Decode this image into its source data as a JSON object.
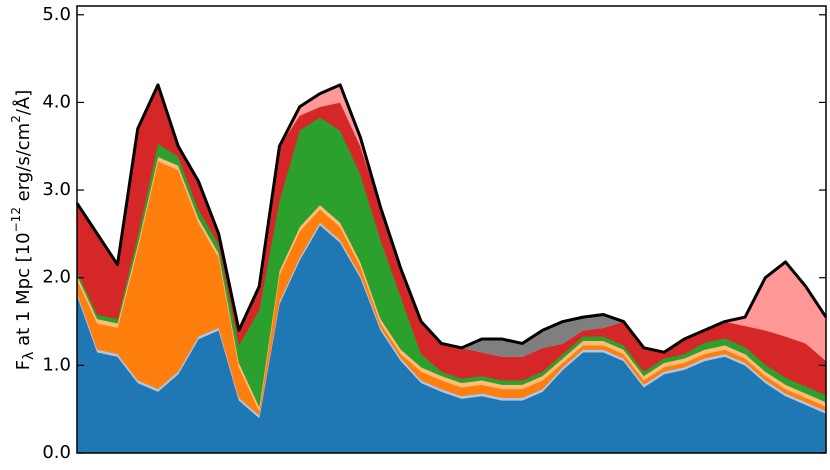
{
  "chart_data": {
    "type": "stacked_area",
    "ylabel": [
      "F",
      "λ",
      " at 1 Mpc [10",
      "−12",
      " erg/s/cm",
      "2",
      "/Å]"
    ],
    "categories": [
      null,
      null,
      null,
      null,
      null,
      null,
      null,
      null,
      null,
      null,
      null,
      null,
      null,
      null,
      null,
      null,
      null,
      null,
      null,
      null,
      null,
      null,
      null,
      null,
      null,
      null,
      null,
      null,
      null,
      null,
      null,
      null,
      null,
      null,
      null,
      null,
      null,
      null
    ],
    "ylim": [
      0,
      5.1
    ],
    "yticks": [
      {
        "value": 0,
        "label": "0.0"
      },
      {
        "value": 1,
        "label": "1.0"
      },
      {
        "value": 2,
        "label": "2.0"
      },
      {
        "value": 3,
        "label": "3.0"
      },
      {
        "value": 4,
        "label": "4.0"
      },
      {
        "value": 5,
        "label": "5.0"
      }
    ],
    "series": [
      {
        "color": "#1f77b4",
        "values": [
          1.8,
          1.15,
          1.1,
          0.8,
          0.7,
          0.9,
          1.3,
          1.4,
          0.6,
          0.4,
          1.7,
          2.2,
          2.6,
          2.4,
          2.0,
          1.4,
          1.05,
          0.8,
          0.7,
          0.62,
          0.65,
          0.6,
          0.6,
          0.7,
          0.95,
          1.15,
          1.15,
          1.05,
          0.75,
          0.9,
          0.95,
          1.05,
          1.1,
          1.0,
          0.8,
          0.65,
          0.55,
          0.45
        ]
      },
      {
        "color": "#aec7e8",
        "values": [
          0.03,
          0.03,
          0.03,
          0.03,
          0.03,
          0.03,
          0.03,
          0.03,
          0.03,
          0.03,
          0.03,
          0.03,
          0.03,
          0.03,
          0.03,
          0.03,
          0.03,
          0.03,
          0.03,
          0.03,
          0.03,
          0.03,
          0.03,
          0.03,
          0.03,
          0.03,
          0.03,
          0.03,
          0.03,
          0.03,
          0.03,
          0.03,
          0.03,
          0.03,
          0.03,
          0.03,
          0.03,
          0.03
        ]
      },
      {
        "color": "#ff7f0e",
        "values": [
          0.15,
          0.3,
          0.3,
          1.5,
          2.6,
          2.3,
          1.3,
          0.8,
          0.35,
          0.05,
          0.3,
          0.3,
          0.15,
          0.15,
          0.1,
          0.05,
          0.05,
          0.1,
          0.1,
          0.1,
          0.1,
          0.1,
          0.1,
          0.1,
          0.05,
          0.05,
          0.05,
          0.05,
          0.05,
          0.05,
          0.05,
          0.05,
          0.05,
          0.05,
          0.05,
          0.05,
          0.05,
          0.05
        ]
      },
      {
        "color": "#ffbb78",
        "values": [
          0.05,
          0.05,
          0.05,
          0.05,
          0.05,
          0.05,
          0.05,
          0.05,
          0.05,
          0.05,
          0.05,
          0.05,
          0.05,
          0.05,
          0.05,
          0.05,
          0.05,
          0.05,
          0.05,
          0.05,
          0.05,
          0.05,
          0.05,
          0.05,
          0.05,
          0.05,
          0.05,
          0.05,
          0.05,
          0.05,
          0.05,
          0.05,
          0.05,
          0.05,
          0.05,
          0.05,
          0.05,
          0.05
        ]
      },
      {
        "color": "#2ca02c",
        "values": [
          0.05,
          0.05,
          0.05,
          0.1,
          0.15,
          0.1,
          0.1,
          0.1,
          0.2,
          1.1,
          0.8,
          1.1,
          1.0,
          1.05,
          1.0,
          0.9,
          0.6,
          0.15,
          0.05,
          0.05,
          0.05,
          0.05,
          0.05,
          0.05,
          0.05,
          0.05,
          0.05,
          0.05,
          0.05,
          0.05,
          0.05,
          0.08,
          0.08,
          0.08,
          0.08,
          0.08,
          0.08,
          0.08
        ]
      },
      {
        "color": "#d62728",
        "values": [
          0.77,
          0.92,
          0.62,
          1.22,
          0.67,
          0.12,
          0.32,
          0.12,
          0.17,
          0.27,
          0.62,
          0.17,
          0.12,
          0.32,
          0.32,
          0.37,
          0.32,
          0.37,
          0.32,
          0.35,
          0.27,
          0.27,
          0.27,
          0.27,
          0.12,
          0.07,
          0.1,
          0.27,
          0.27,
          0.07,
          0.17,
          0.14,
          0.19,
          0.24,
          0.39,
          0.47,
          0.49,
          0.39
        ]
      },
      {
        "color": "#ff9896",
        "values": [
          0,
          0,
          0,
          0,
          0,
          0,
          0,
          0,
          0,
          0,
          0,
          0.1,
          0.15,
          0.2,
          0.1,
          0,
          0,
          0,
          0,
          0,
          0,
          0,
          0,
          0,
          0,
          0,
          0,
          0,
          0,
          0,
          0,
          0,
          0,
          0.1,
          0.6,
          0.85,
          0.65,
          0.5
        ]
      },
      {
        "color": "#7f7f7f",
        "values": [
          0,
          0,
          0,
          0,
          0,
          0,
          0,
          0,
          0,
          0,
          0,
          0,
          0,
          0,
          0,
          0,
          0,
          0,
          0,
          0,
          0.15,
          0.2,
          0.15,
          0.2,
          0.25,
          0.15,
          0.15,
          0,
          0,
          0,
          0,
          0,
          0,
          0,
          0,
          0,
          0,
          0
        ]
      }
    ]
  }
}
